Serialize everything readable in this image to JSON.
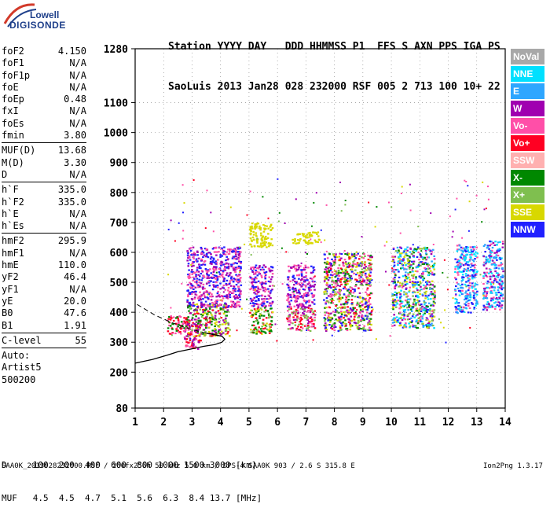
{
  "logo": {
    "line1": "Lowell",
    "line2": "DIGISONDE"
  },
  "header": {
    "labels": [
      "Station",
      "YYYY",
      "DAY",
      "DDD",
      "HHMMSS",
      "P1",
      "FFS",
      "S",
      "AXN",
      "PPS",
      "IGA",
      "PS"
    ],
    "values": [
      "SaoLuis",
      "2013",
      "Jan28",
      "028",
      "232000",
      "RSF",
      "005",
      "2",
      "713",
      "100",
      "10+",
      "22"
    ]
  },
  "params": {
    "group1": [
      {
        "k": "foF2",
        "v": "4.150"
      },
      {
        "k": "foF1",
        "v": "N/A"
      },
      {
        "k": "foF1p",
        "v": "N/A"
      },
      {
        "k": "foE",
        "v": "N/A"
      },
      {
        "k": "foEp",
        "v": "0.48"
      },
      {
        "k": "fxI",
        "v": "N/A"
      },
      {
        "k": "foEs",
        "v": "N/A"
      },
      {
        "k": "fmin",
        "v": "3.80"
      }
    ],
    "group2": [
      {
        "k": "MUF(D)",
        "v": "13.68"
      },
      {
        "k": "M(D)",
        "v": "3.30"
      },
      {
        "k": "D",
        "v": "N/A"
      }
    ],
    "group3": [
      {
        "k": "h`F",
        "v": "335.0"
      },
      {
        "k": "h`F2",
        "v": "335.0"
      },
      {
        "k": "h`E",
        "v": "N/A"
      },
      {
        "k": "h`Es",
        "v": "N/A"
      }
    ],
    "group4": [
      {
        "k": "hmF2",
        "v": "295.9"
      },
      {
        "k": "hmF1",
        "v": "N/A"
      },
      {
        "k": "hmE",
        "v": "110.0"
      },
      {
        "k": "yF2",
        "v": "46.4"
      },
      {
        "k": "yF1",
        "v": "N/A"
      },
      {
        "k": "yE",
        "v": "20.0"
      },
      {
        "k": "B0",
        "v": "47.6"
      },
      {
        "k": "B1",
        "v": "1.91"
      }
    ],
    "group5": [
      {
        "k": "C-level",
        "v": "55"
      }
    ],
    "auto": [
      "Auto:",
      "Artist5",
      "500200"
    ]
  },
  "legend": [
    {
      "label": "NoVal",
      "color": "#a8a8a8"
    },
    {
      "label": "NNE",
      "color": "#00e0ff"
    },
    {
      "label": "E",
      "color": "#2ea6ff"
    },
    {
      "label": "W",
      "color": "#a000b0"
    },
    {
      "label": "Vo-",
      "color": "#ff4fa8"
    },
    {
      "label": "Vo+",
      "color": "#ff0022"
    },
    {
      "label": "SSW",
      "color": "#ffb0b0"
    },
    {
      "label": "X-",
      "color": "#008800"
    },
    {
      "label": "X+",
      "color": "#7fbf4f"
    },
    {
      "label": "SSE",
      "color": "#d8d800"
    },
    {
      "label": "NNW",
      "color": "#2020ff"
    }
  ],
  "footer": {
    "d_row": "D     100  200  400  600  800 1000 1500 3000 [km]",
    "muf_row": "MUF   4.5  4.5  4.7  5.1  5.6  6.3  8.4 13.7 [MHz]",
    "bottom": "SAA0K_2013028232000.RSF / 260fx256h 50 kHz 5.0 km / DPS-4 SAA0K 903 / 2.6 S 315.8 E",
    "version": "Ion2Png 1.3.17"
  },
  "chart_data": {
    "type": "scatter",
    "title": "",
    "xlabel": "",
    "ylabel": "",
    "xlim": [
      1,
      14
    ],
    "ylim": [
      80,
      1280
    ],
    "xticks": [
      1,
      2,
      3,
      4,
      5,
      6,
      7,
      8,
      9,
      10,
      11,
      12,
      13,
      14
    ],
    "yticks": [
      80,
      200,
      300,
      400,
      500,
      600,
      700,
      800,
      900,
      1000,
      1100,
      1280
    ],
    "grid": true,
    "echo_clusters": [
      {
        "x": [
          2.7,
          3.3
        ],
        "y": [
          280,
          380
        ],
        "colors": [
          "Vo+",
          "Vo-",
          "W"
        ]
      },
      {
        "x": [
          2.1,
          2.9
        ],
        "y": [
          330,
          390
        ],
        "colors": [
          "Vo+",
          "X-",
          "Vo-"
        ]
      },
      {
        "x": [
          2.8,
          4.3
        ],
        "y": [
          320,
          430
        ],
        "colors": [
          "X-",
          "X+",
          "SSE",
          "Vo+",
          "W"
        ]
      },
      {
        "x": [
          2.8,
          4.7
        ],
        "y": [
          420,
          620
        ],
        "colors": [
          "W",
          "NNW",
          "Vo-"
        ]
      },
      {
        "x": [
          5.0,
          5.8
        ],
        "y": [
          330,
          420
        ],
        "colors": [
          "X-",
          "X+",
          "Vo+",
          "SSE"
        ]
      },
      {
        "x": [
          5.0,
          5.8
        ],
        "y": [
          420,
          560
        ],
        "colors": [
          "W",
          "NNW",
          "Vo-"
        ]
      },
      {
        "x": [
          5.0,
          5.8
        ],
        "y": [
          620,
          700
        ],
        "colors": [
          "SSE"
        ]
      },
      {
        "x": [
          6.3,
          7.3
        ],
        "y": [
          340,
          420
        ],
        "colors": [
          "Vo+",
          "Vo-",
          "X+",
          "W"
        ]
      },
      {
        "x": [
          6.3,
          7.3
        ],
        "y": [
          420,
          560
        ],
        "colors": [
          "W",
          "NNW",
          "Vo-"
        ]
      },
      {
        "x": [
          6.5,
          7.5
        ],
        "y": [
          630,
          670
        ],
        "colors": [
          "SSE"
        ]
      },
      {
        "x": [
          7.6,
          9.3
        ],
        "y": [
          340,
          600
        ],
        "colors": [
          "Vo-",
          "SSE",
          "X+",
          "W",
          "NNW",
          "Vo+",
          "X-"
        ]
      },
      {
        "x": [
          10.0,
          11.5
        ],
        "y": [
          350,
          620
        ],
        "colors": [
          "NNE",
          "E",
          "X+",
          "SSE",
          "Vo-",
          "W",
          "X-",
          "NNW"
        ]
      },
      {
        "x": [
          12.2,
          13.0
        ],
        "y": [
          400,
          630
        ],
        "colors": [
          "NNE",
          "E",
          "NNW",
          "Vo-"
        ]
      },
      {
        "x": [
          13.2,
          13.9
        ],
        "y": [
          410,
          640
        ],
        "colors": [
          "NNE",
          "E",
          "W",
          "NNW",
          "Vo-"
        ]
      }
    ],
    "profile_curve": {
      "freq": [
        1.0,
        1.6,
        2.1,
        2.5,
        3.0,
        3.4,
        3.8,
        4.05,
        4.15,
        4.05,
        3.5,
        2.9,
        2.3,
        1.7,
        1.0
      ],
      "height": [
        230,
        242,
        256,
        268,
        278,
        286,
        292,
        300,
        310,
        320,
        330,
        345,
        365,
        390,
        430
      ]
    }
  }
}
